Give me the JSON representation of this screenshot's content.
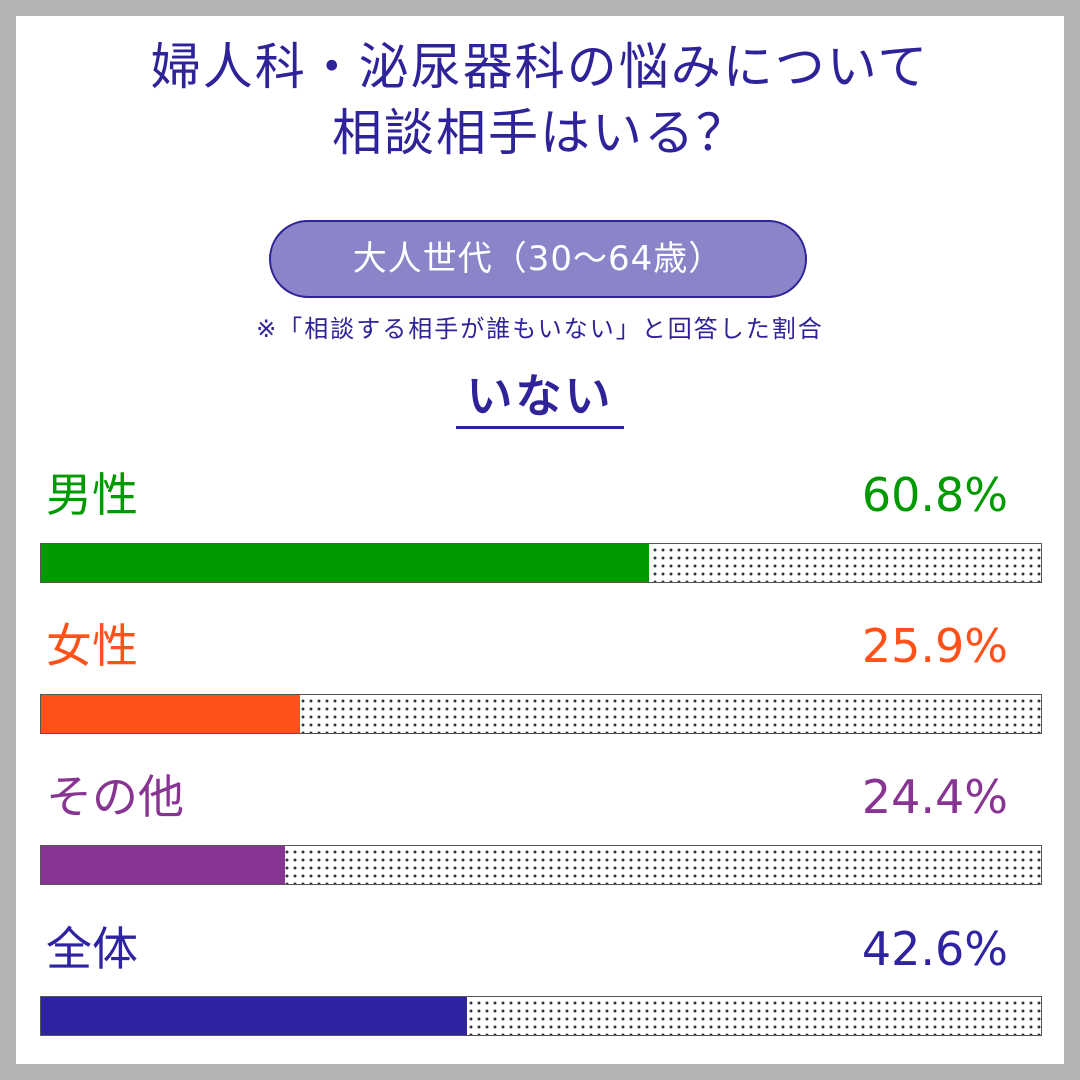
{
  "title": {
    "line1": "婦人科・泌尿器科の悩みについて",
    "line2": "相談相手はいる？"
  },
  "subtitle": "大人世代（30〜64歳）",
  "note": "※「相談する相手が誰もいない」と回答した割合",
  "measure_label": "いない",
  "chart_data": {
    "type": "bar",
    "orientation": "horizontal",
    "categories": [
      "男性",
      "女性",
      "その他",
      "全体"
    ],
    "values": [
      60.8,
      25.9,
      24.4,
      42.6
    ],
    "value_labels": [
      "60.8%",
      "25.9%",
      "24.4%",
      "42.6%"
    ],
    "colors": [
      "#009a00",
      "#ff5119",
      "#883493",
      "#2e23a0"
    ],
    "xlim": [
      0,
      100
    ],
    "unit": "%",
    "grid": false
  }
}
